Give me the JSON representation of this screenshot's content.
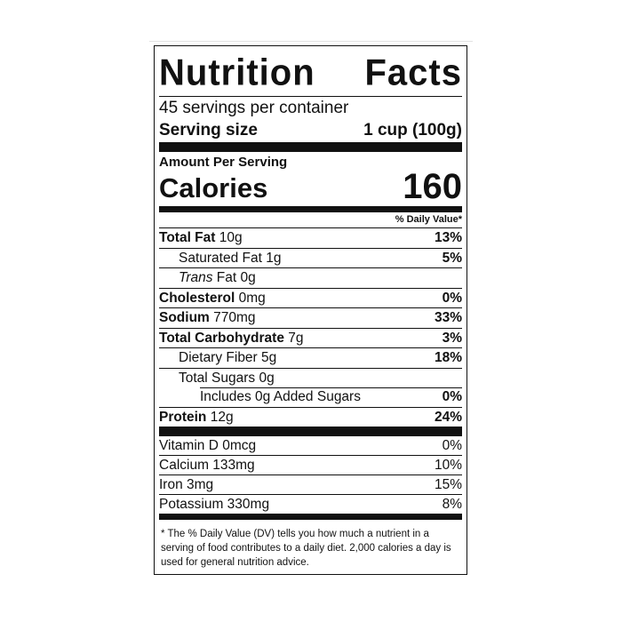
{
  "title": "Nutrition Facts",
  "servings_per_container": "45 servings per container",
  "serving_size": {
    "label": "Serving size",
    "value": "1 cup (100g)"
  },
  "amount_per_serving": "Amount Per Serving",
  "calories": {
    "label": "Calories",
    "value": "160"
  },
  "daily_value_header": "% Daily Value*",
  "nutrients": [
    {
      "bold_name": "Total Fat",
      "amount": "10g",
      "dv": "13%"
    },
    {
      "name": "Saturated Fat 1g",
      "dv": "5%"
    },
    {
      "italic": "Trans",
      "name": "Fat 0g",
      "dv": ""
    },
    {
      "bold_name": "Cholesterol",
      "amount": "0mg",
      "dv": "0%"
    },
    {
      "bold_name": "Sodium",
      "amount": "770mg",
      "dv": "33%"
    },
    {
      "bold_name": "Total Carbohydrate",
      "amount": "7g",
      "dv": "3%"
    },
    {
      "name": "Dietary Fiber 5g",
      "dv": "18%"
    },
    {
      "name": "Total Sugars 0g",
      "dv": ""
    },
    {
      "name": "Includes 0g Added Sugars",
      "dv": "0%"
    },
    {
      "bold_name": "Protein",
      "amount": "12g",
      "dv": "24%"
    }
  ],
  "vitamins": [
    {
      "name": "Vitamin D 0mcg",
      "dv": "0%"
    },
    {
      "name": "Calcium 133mg",
      "dv": "10%"
    },
    {
      "name": "Iron 3mg",
      "dv": "15%"
    },
    {
      "name": "Potassium 330mg",
      "dv": "8%"
    }
  ],
  "footnote": "* The % Daily Value (DV) tells you how much a nutrient in a serving of food contributes to a daily diet. 2,000 calories a day is used for general nutrition advice."
}
